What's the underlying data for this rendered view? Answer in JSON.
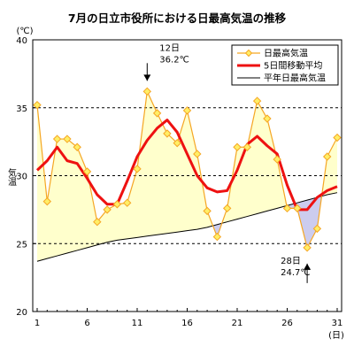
{
  "title": "7月の日立市役所における日最高気温の推移",
  "chart_data": {
    "type": "line",
    "unit_label": "(℃)",
    "ylabel": "気温",
    "x_unit_label": "(日)",
    "ylim": [
      20,
      40
    ],
    "xlim": [
      1,
      31
    ],
    "y_ticks": [
      20,
      25,
      30,
      35,
      40
    ],
    "x_ticks": [
      1,
      6,
      11,
      16,
      21,
      26,
      31
    ],
    "gridlines_y": [
      25,
      30,
      35
    ],
    "days": [
      1,
      2,
      3,
      4,
      5,
      6,
      7,
      8,
      9,
      10,
      11,
      12,
      13,
      14,
      15,
      16,
      17,
      18,
      19,
      20,
      21,
      22,
      23,
      24,
      25,
      26,
      27,
      28,
      29,
      30,
      31
    ],
    "series": [
      {
        "name": "日最高気温",
        "color": "#f5a623",
        "marker": "diamond",
        "values": [
          35.2,
          28.1,
          32.7,
          32.7,
          32.1,
          30.3,
          26.6,
          27.5,
          27.9,
          28.0,
          30.5,
          36.2,
          34.6,
          33.1,
          32.4,
          34.8,
          31.6,
          27.4,
          25.5,
          27.6,
          32.1,
          32.1,
          35.5,
          34.2,
          31.2,
          27.6,
          27.6,
          24.7,
          26.1,
          31.4,
          32.8
        ]
      },
      {
        "name": "5日間移動平均",
        "color": "#ee1111",
        "values": [
          30.4,
          31.1,
          32.1,
          31.1,
          30.9,
          29.8,
          28.6,
          27.9,
          27.9,
          29.6,
          31.4,
          32.6,
          33.5,
          34.1,
          33.2,
          31.6,
          30.0,
          29.1,
          28.8,
          28.9,
          30.4,
          32.3,
          32.9,
          32.2,
          31.6,
          29.3,
          27.5,
          27.5,
          28.4,
          28.9,
          29.2
        ]
      },
      {
        "name": "平年日最高気温",
        "color": "#000000",
        "values": [
          23.7,
          23.9,
          24.1,
          24.3,
          24.5,
          24.7,
          24.9,
          25.1,
          25.25,
          25.35,
          25.45,
          25.55,
          25.65,
          25.75,
          25.85,
          25.95,
          26.05,
          26.2,
          26.4,
          26.6,
          26.8,
          27.0,
          27.2,
          27.4,
          27.6,
          27.8,
          28.0,
          28.2,
          28.4,
          28.6,
          28.75
        ]
      }
    ],
    "annotations": [
      {
        "line1": "12日",
        "line2": "36.2℃",
        "day": 12,
        "value": 36.2,
        "arrow": "down"
      },
      {
        "line1": "28日",
        "line2": "24.7℃",
        "day": 28,
        "value": 24.7,
        "arrow": "up"
      }
    ],
    "legend_position": "top-right",
    "fill_above_color": "#ffffcc",
    "fill_below_color": "#ccccee"
  }
}
